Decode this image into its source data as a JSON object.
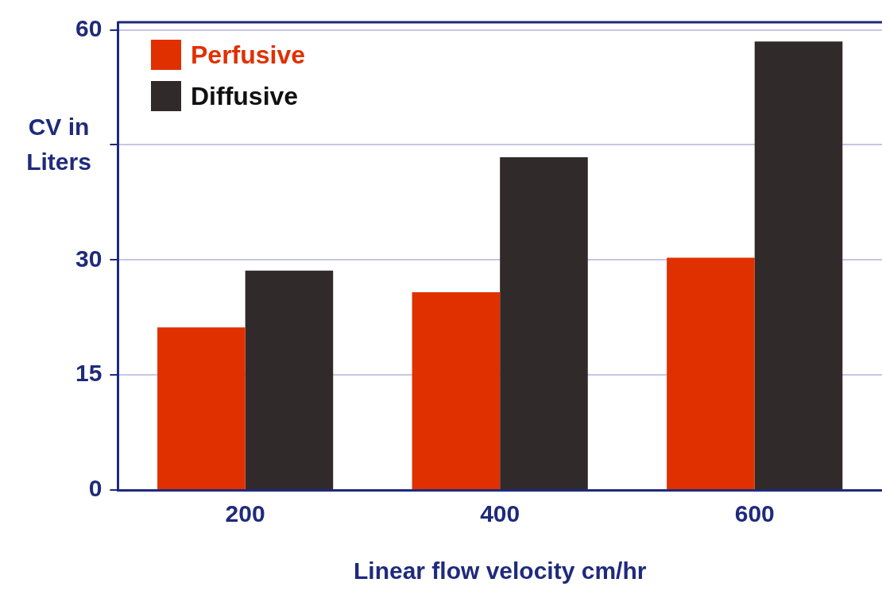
{
  "chart_data": {
    "type": "bar",
    "xlabel": "Linear flow velocity cm/hr",
    "ylabel": "CV in Liters",
    "categories": [
      "200",
      "400",
      "600"
    ],
    "series": [
      {
        "name": "Perfusive",
        "color": "#e03000",
        "values": [
          21.2,
          25.8,
          30.3
        ]
      },
      {
        "name": "Diffusive",
        "color": "#302a2a",
        "values": [
          28.6,
          43.4,
          58.5
        ]
      }
    ],
    "ylim": [
      0,
      61
    ],
    "yticks": [
      0,
      15,
      30,
      {
        "value": 45,
        "label": null
      },
      60
    ],
    "grid": "y",
    "legend": "top left"
  }
}
